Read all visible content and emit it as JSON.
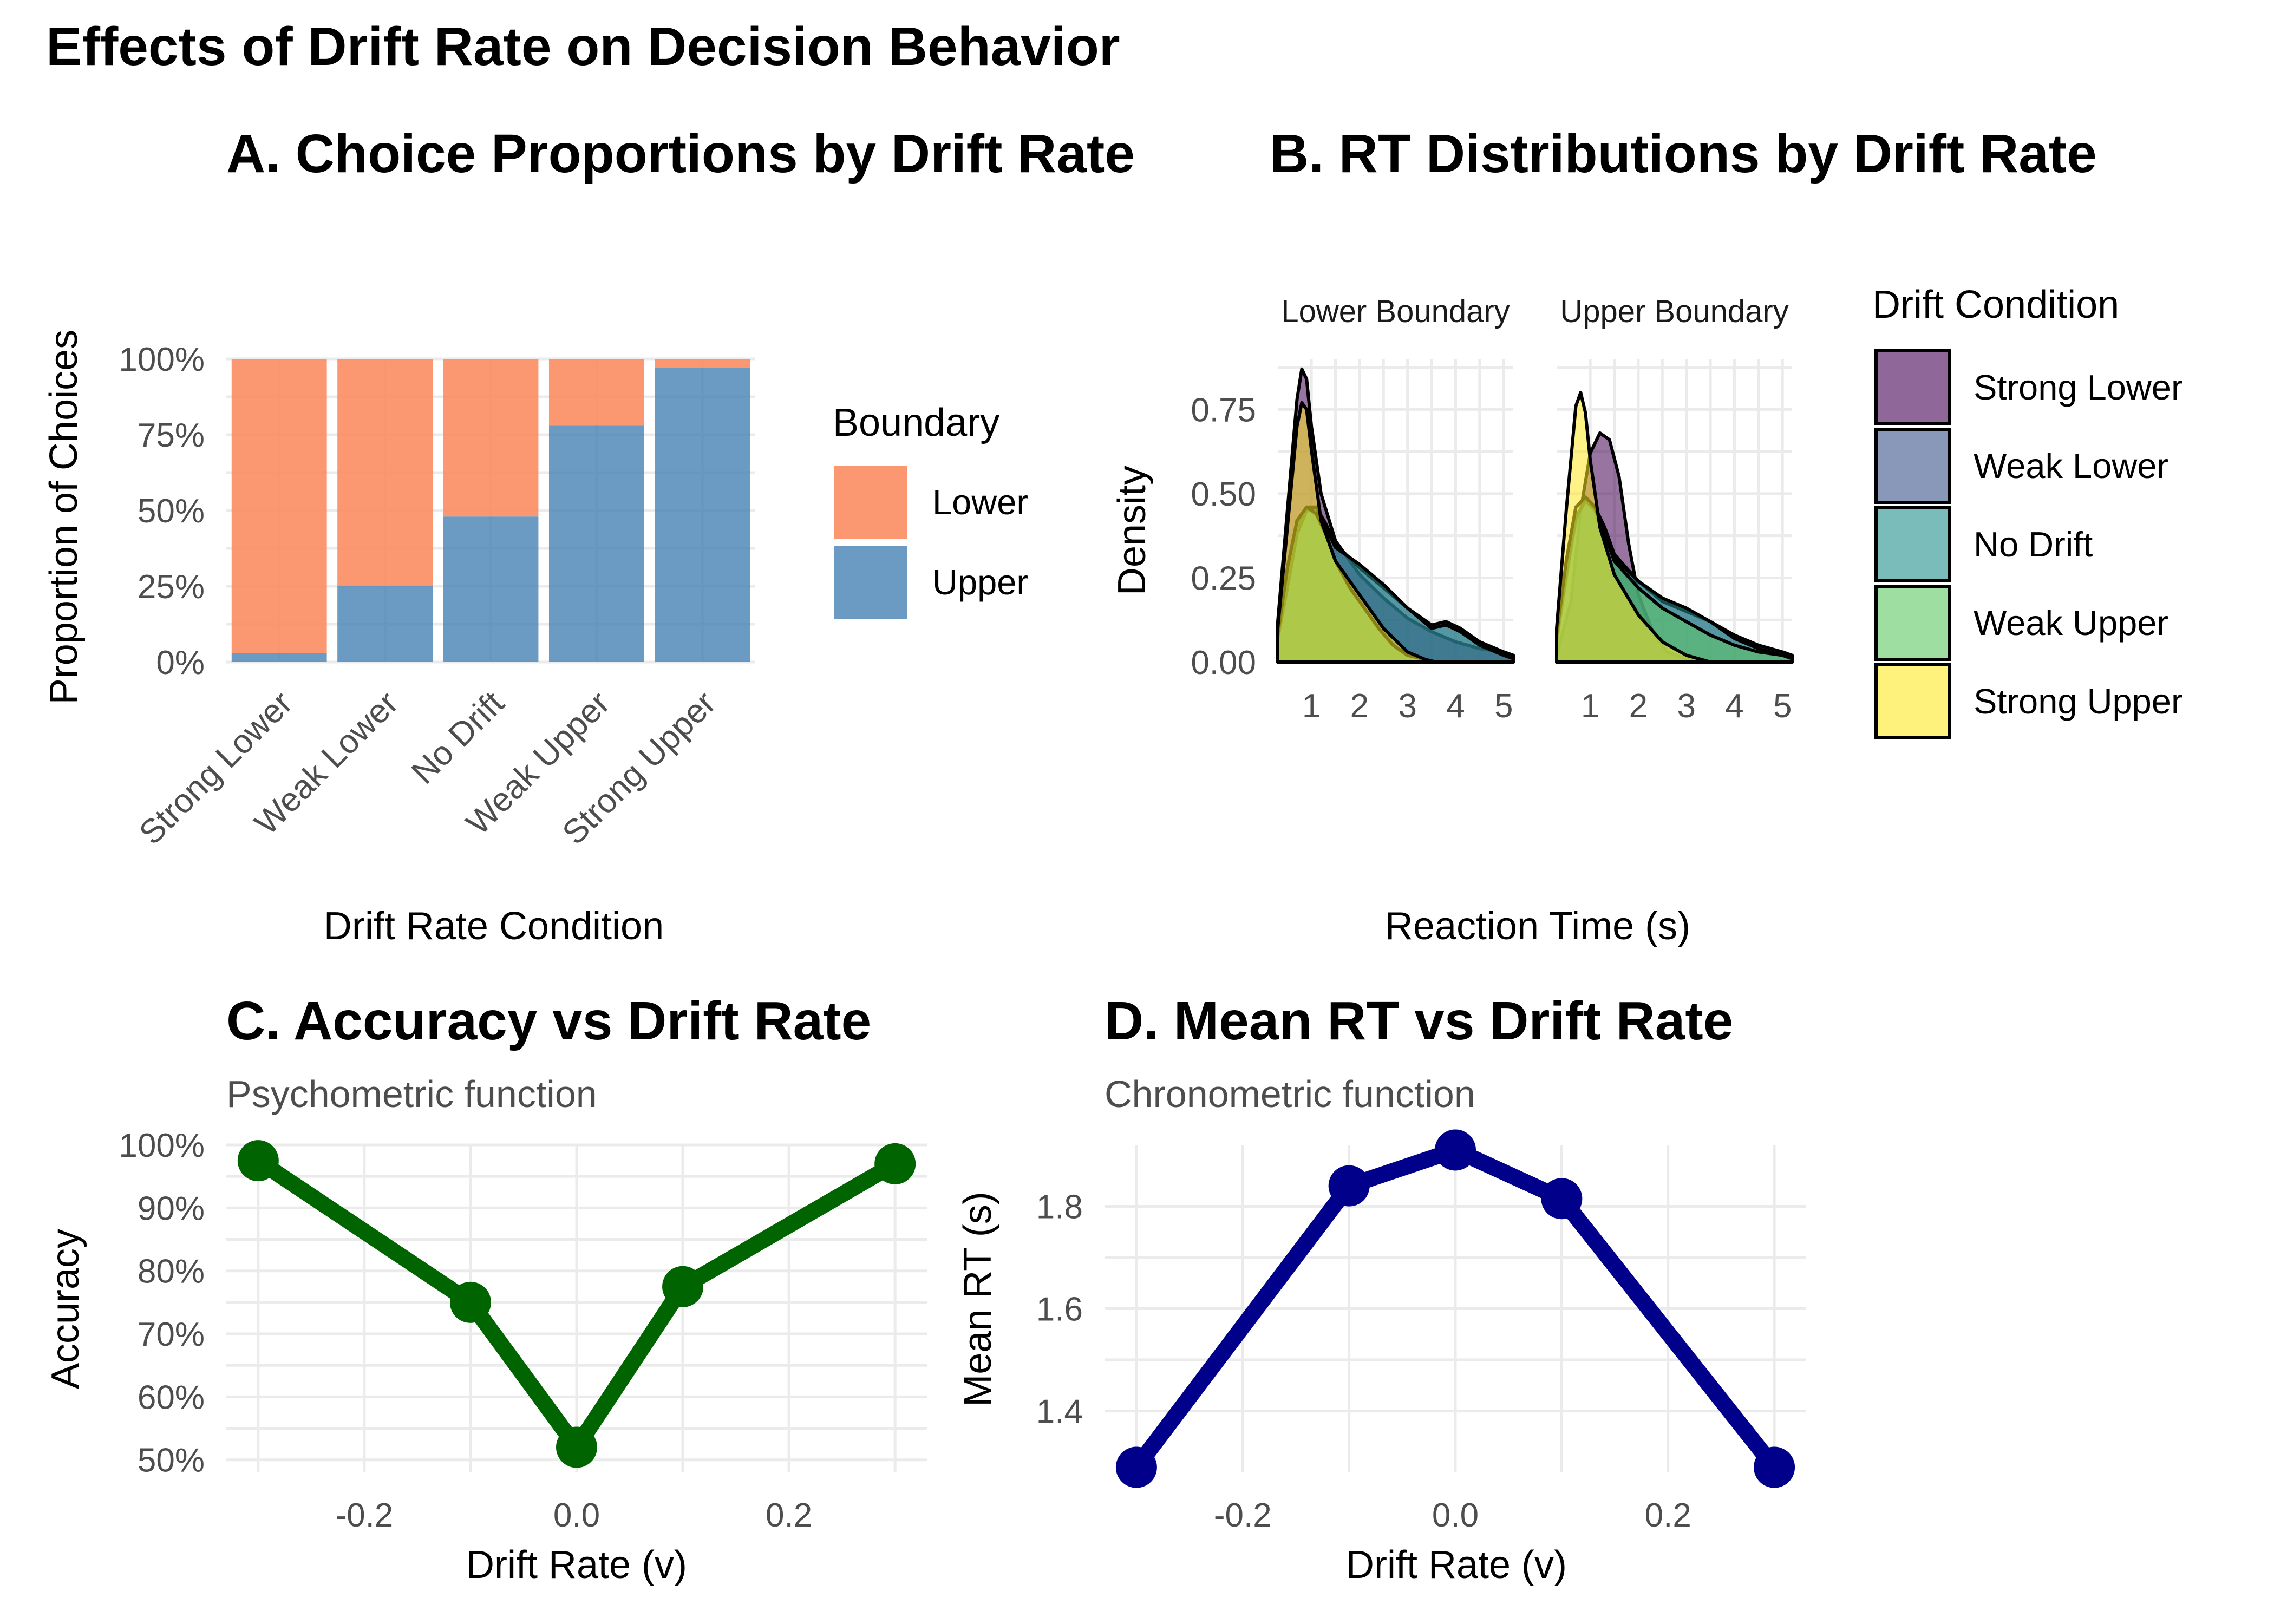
{
  "figure": {
    "title": "Effects of Drift Rate on Decision Behavior"
  },
  "panels": {
    "a": {
      "title": "A. Choice Proportions by Drift Rate",
      "xlabel": "Drift Rate Condition",
      "ylabel": "Proportion of Choices",
      "legend_title": "Boundary"
    },
    "b": {
      "title": "B. RT Distributions by Drift Rate",
      "xlabel": "Reaction Time (s)",
      "ylabel": "Density",
      "legend_title": "Drift Condition",
      "facets": [
        "Lower Boundary",
        "Upper Boundary"
      ]
    },
    "c": {
      "title": "C. Accuracy vs Drift Rate",
      "subtitle": "Psychometric function",
      "xlabel": "Drift Rate (v)",
      "ylabel": "Accuracy"
    },
    "d": {
      "title": "D. Mean RT vs Drift Rate",
      "subtitle": "Chronometric function",
      "xlabel": "Drift Rate (v)",
      "ylabel": "Mean RT (s)"
    }
  },
  "chart_data": [
    {
      "id": "a",
      "type": "bar",
      "stacked": true,
      "categories": [
        "Strong Lower",
        "Weak Lower",
        "No Drift",
        "Weak Upper",
        "Strong Upper"
      ],
      "series": [
        {
          "name": "Lower",
          "color": "#fc8d62",
          "values": [
            0.97,
            0.75,
            0.52,
            0.22,
            0.03
          ]
        },
        {
          "name": "Upper",
          "color": "#4682b4",
          "values": [
            0.03,
            0.25,
            0.48,
            0.78,
            0.97
          ]
        }
      ],
      "ylim": [
        0,
        1
      ],
      "yticks": [
        "0%",
        "25%",
        "50%",
        "75%",
        "100%"
      ],
      "legend_position": "right"
    },
    {
      "id": "b",
      "type": "area",
      "x_ticks": [
        1,
        2,
        3,
        4,
        5
      ],
      "y_ticks": [
        "0.00",
        "0.25",
        "0.50",
        "0.75"
      ],
      "ylim": [
        0,
        0.9
      ],
      "xlim": [
        0.3,
        5.2
      ],
      "series": [
        {
          "name": "Strong Lower",
          "color": "#440154"
        },
        {
          "name": "Weak Lower",
          "color": "#3b528b"
        },
        {
          "name": "No Drift",
          "color": "#21908c"
        },
        {
          "name": "Weak Upper",
          "color": "#5dc863"
        },
        {
          "name": "Strong Upper",
          "color": "#fde725"
        }
      ],
      "facets": [
        {
          "name": "Lower Boundary",
          "curves": [
            {
              "series": "Strong Lower",
              "x": [
                0.3,
                0.5,
                0.7,
                0.8,
                0.9,
                1.0,
                1.2,
                1.5,
                2.0,
                2.5,
                3.0,
                3.5,
                4.0,
                4.5,
                5.0,
                5.2
              ],
              "y": [
                0.12,
                0.45,
                0.78,
                0.87,
                0.84,
                0.7,
                0.5,
                0.36,
                0.26,
                0.19,
                0.13,
                0.09,
                0.06,
                0.04,
                0.03,
                0.02
              ]
            },
            {
              "series": "Weak Lower",
              "x": [
                0.3,
                0.5,
                0.7,
                0.9,
                1.1,
                1.3,
                1.5,
                2.0,
                2.5,
                3.0,
                3.5,
                3.8,
                4.1,
                4.5,
                5.0,
                5.2
              ],
              "y": [
                0.08,
                0.25,
                0.4,
                0.46,
                0.46,
                0.41,
                0.35,
                0.28,
                0.22,
                0.16,
                0.11,
                0.12,
                0.1,
                0.06,
                0.03,
                0.02
              ]
            },
            {
              "series": "No Drift",
              "x": [
                0.3,
                0.5,
                0.7,
                0.9,
                1.1,
                1.3,
                1.5,
                2.0,
                2.5,
                3.0,
                3.5,
                3.8,
                4.1,
                4.5,
                5.0,
                5.2
              ],
              "y": [
                0.07,
                0.22,
                0.38,
                0.45,
                0.46,
                0.4,
                0.34,
                0.29,
                0.23,
                0.16,
                0.1,
                0.11,
                0.09,
                0.05,
                0.02,
                0.01
              ]
            },
            {
              "series": "Weak Upper",
              "x": [
                0.3,
                0.5,
                0.7,
                0.9,
                1.1,
                1.3,
                1.5,
                1.8,
                2.1,
                2.4,
                2.7,
                3.0,
                3.3,
                3.6
              ],
              "y": [
                0.08,
                0.28,
                0.42,
                0.46,
                0.44,
                0.38,
                0.3,
                0.22,
                0.16,
                0.1,
                0.05,
                0.02,
                0.01,
                0.0
              ]
            },
            {
              "series": "Strong Upper",
              "x": [
                0.3,
                0.5,
                0.7,
                0.8,
                0.9,
                1.0,
                1.2,
                1.5,
                2.0,
                2.5,
                3.0,
                3.5
              ],
              "y": [
                0.1,
                0.4,
                0.7,
                0.77,
                0.75,
                0.63,
                0.42,
                0.3,
                0.2,
                0.1,
                0.03,
                0.0
              ]
            }
          ]
        },
        {
          "name": "Upper Boundary",
          "curves": [
            {
              "series": "Strong Lower",
              "x": [
                0.3,
                0.6,
                0.8,
                1.0,
                1.2,
                1.4,
                1.6,
                1.8,
                2.0,
                2.3,
                2.6,
                3.0,
                3.5
              ],
              "y": [
                0.02,
                0.18,
                0.45,
                0.62,
                0.68,
                0.66,
                0.55,
                0.35,
                0.2,
                0.09,
                0.03,
                0.01,
                0.0
              ]
            },
            {
              "series": "Weak Lower",
              "x": [
                0.3,
                0.5,
                0.7,
                0.9,
                1.1,
                1.3,
                1.5,
                2.0,
                2.5,
                3.0,
                3.5,
                4.0,
                4.5,
                5.0,
                5.2
              ],
              "y": [
                0.06,
                0.25,
                0.42,
                0.48,
                0.46,
                0.4,
                0.32,
                0.24,
                0.18,
                0.15,
                0.12,
                0.08,
                0.05,
                0.03,
                0.02
              ]
            },
            {
              "series": "No Drift",
              "x": [
                0.3,
                0.5,
                0.7,
                0.9,
                1.1,
                1.3,
                1.5,
                2.0,
                2.5,
                3.0,
                3.5,
                4.0,
                4.5,
                5.0,
                5.2
              ],
              "y": [
                0.07,
                0.26,
                0.43,
                0.48,
                0.45,
                0.38,
                0.31,
                0.24,
                0.19,
                0.16,
                0.12,
                0.07,
                0.04,
                0.02,
                0.01
              ]
            },
            {
              "series": "Weak Upper",
              "x": [
                0.3,
                0.5,
                0.7,
                0.9,
                1.1,
                1.3,
                1.5,
                2.0,
                2.5,
                3.0,
                3.5,
                4.0,
                4.5,
                5.0,
                5.2
              ],
              "y": [
                0.08,
                0.3,
                0.46,
                0.49,
                0.46,
                0.38,
                0.3,
                0.22,
                0.16,
                0.12,
                0.08,
                0.05,
                0.03,
                0.02,
                0.01
              ]
            },
            {
              "series": "Strong Upper",
              "x": [
                0.3,
                0.5,
                0.7,
                0.8,
                0.9,
                1.0,
                1.2,
                1.5,
                2.0,
                2.5,
                3.0,
                3.5
              ],
              "y": [
                0.1,
                0.45,
                0.76,
                0.8,
                0.74,
                0.6,
                0.4,
                0.26,
                0.14,
                0.06,
                0.02,
                0.0
              ]
            }
          ]
        }
      ],
      "legend_position": "right"
    },
    {
      "id": "c",
      "type": "line",
      "color": "#006400",
      "x": [
        -0.3,
        -0.1,
        0.0,
        0.1,
        0.3
      ],
      "y": [
        0.975,
        0.75,
        0.52,
        0.775,
        0.97
      ],
      "xticks": [
        -0.2,
        0.0,
        0.2
      ],
      "xtick_labels": [
        "-0.2",
        "0.0",
        "0.2"
      ],
      "yticks": [
        0.5,
        0.6,
        0.7,
        0.8,
        0.9,
        1.0
      ],
      "ytick_labels": [
        "50%",
        "60%",
        "70%",
        "80%",
        "90%",
        "100%"
      ],
      "xlim": [
        -0.33,
        0.33
      ],
      "ylim": [
        0.48,
        1.0
      ]
    },
    {
      "id": "d",
      "type": "line",
      "color": "#00008b",
      "x": [
        -0.3,
        -0.1,
        0.0,
        0.1,
        0.3
      ],
      "y": [
        1.29,
        1.84,
        1.91,
        1.815,
        1.29
      ],
      "xticks": [
        -0.2,
        0.0,
        0.2
      ],
      "xtick_labels": [
        "-0.2",
        "0.0",
        "0.2"
      ],
      "yticks": [
        1.4,
        1.6,
        1.8
      ],
      "ytick_labels": [
        "1.4",
        "1.6",
        "1.8"
      ],
      "xlim": [
        -0.33,
        0.33
      ],
      "ylim": [
        1.28,
        1.92
      ]
    }
  ]
}
